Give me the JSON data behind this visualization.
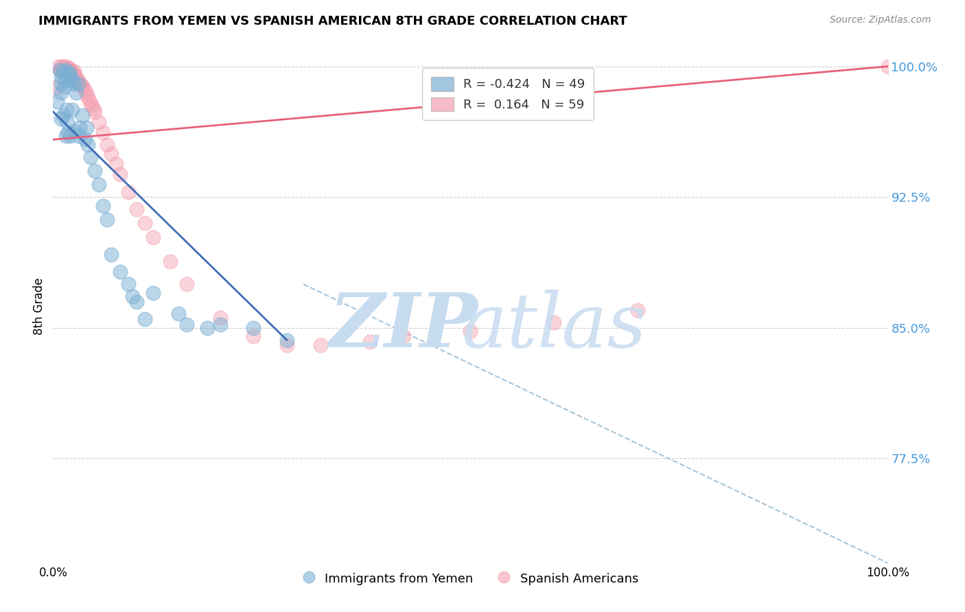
{
  "title": "IMMIGRANTS FROM YEMEN VS SPANISH AMERICAN 8TH GRADE CORRELATION CHART",
  "source": "Source: ZipAtlas.com",
  "ylabel": "8th Grade",
  "xlim": [
    0.0,
    1.0
  ],
  "ylim": [
    0.715,
    1.01
  ],
  "yticks": [
    0.775,
    0.85,
    0.925,
    1.0
  ],
  "ytick_labels": [
    "77.5%",
    "85.0%",
    "92.5%",
    "100.0%"
  ],
  "xticks": [
    0.0,
    0.2,
    0.4,
    0.6,
    0.8,
    1.0
  ],
  "xtick_labels": [
    "0.0%",
    "",
    "",
    "",
    "",
    "100.0%"
  ],
  "legend_blue_label": "Immigrants from Yemen",
  "legend_pink_label": "Spanish Americans",
  "R_blue": -0.424,
  "N_blue": 49,
  "R_pink": 0.164,
  "N_pink": 59,
  "blue_color": "#7BAFD4",
  "pink_color": "#F4A0B0",
  "blue_line_color": "#3D6CB5",
  "pink_line_color": "#E8607A",
  "dashed_line_color": "#A8C4D8",
  "background_color": "#FFFFFF",
  "watermark_zip": "ZIP",
  "watermark_atlas": "atlas",
  "watermark_color": "#C8DCF0",
  "blue_line_x0": 0.0,
  "blue_line_y0": 0.974,
  "blue_line_x1": 0.28,
  "blue_line_y1": 0.843,
  "pink_line_x0": 0.0,
  "pink_line_y0": 0.958,
  "pink_line_x1": 1.0,
  "pink_line_y1": 1.0,
  "dash_line_x0": 0.3,
  "dash_line_y0": 0.875,
  "dash_line_x1": 1.0,
  "dash_line_y1": 0.715,
  "blue_scatter_x": [
    0.005,
    0.008,
    0.01,
    0.01,
    0.01,
    0.01,
    0.012,
    0.012,
    0.013,
    0.015,
    0.015,
    0.015,
    0.016,
    0.017,
    0.018,
    0.018,
    0.02,
    0.02,
    0.02,
    0.022,
    0.023,
    0.025,
    0.025,
    0.028,
    0.03,
    0.03,
    0.032,
    0.035,
    0.038,
    0.04,
    0.042,
    0.045,
    0.05,
    0.055,
    0.06,
    0.065,
    0.07,
    0.08,
    0.09,
    0.095,
    0.1,
    0.11,
    0.12,
    0.15,
    0.16,
    0.185,
    0.2,
    0.24,
    0.28
  ],
  "blue_scatter_y": [
    0.98,
    0.998,
    0.994,
    0.99,
    0.985,
    0.97,
    0.997,
    0.972,
    0.988,
    0.998,
    0.993,
    0.96,
    0.975,
    0.968,
    0.996,
    0.962,
    0.996,
    0.992,
    0.96,
    0.993,
    0.975,
    0.99,
    0.963,
    0.985,
    0.99,
    0.96,
    0.965,
    0.972,
    0.958,
    0.965,
    0.955,
    0.948,
    0.94,
    0.932,
    0.92,
    0.912,
    0.892,
    0.882,
    0.875,
    0.868,
    0.865,
    0.855,
    0.87,
    0.858,
    0.852,
    0.85,
    0.852,
    0.85,
    0.843
  ],
  "pink_scatter_x": [
    0.004,
    0.006,
    0.008,
    0.01,
    0.01,
    0.011,
    0.012,
    0.013,
    0.014,
    0.015,
    0.015,
    0.016,
    0.018,
    0.018,
    0.019,
    0.02,
    0.02,
    0.021,
    0.022,
    0.023,
    0.024,
    0.025,
    0.026,
    0.027,
    0.028,
    0.03,
    0.032,
    0.033,
    0.034,
    0.036,
    0.038,
    0.04,
    0.042,
    0.044,
    0.046,
    0.048,
    0.05,
    0.055,
    0.06,
    0.065,
    0.07,
    0.075,
    0.08,
    0.09,
    0.1,
    0.11,
    0.12,
    0.14,
    0.16,
    0.2,
    0.24,
    0.28,
    0.32,
    0.38,
    0.42,
    0.5,
    0.6,
    0.7,
    1.0
  ],
  "pink_scatter_y": [
    0.988,
    1.0,
    0.998,
    1.0,
    0.998,
    0.997,
    1.0,
    0.999,
    0.998,
    1.0,
    0.999,
    0.998,
    0.998,
    0.997,
    0.999,
    0.998,
    0.996,
    0.998,
    0.997,
    0.996,
    0.995,
    0.997,
    0.995,
    0.994,
    0.993,
    0.992,
    0.99,
    0.99,
    0.989,
    0.988,
    0.986,
    0.984,
    0.982,
    0.98,
    0.978,
    0.976,
    0.974,
    0.968,
    0.962,
    0.955,
    0.95,
    0.944,
    0.938,
    0.928,
    0.918,
    0.91,
    0.902,
    0.888,
    0.875,
    0.856,
    0.845,
    0.84,
    0.84,
    0.842,
    0.845,
    0.848,
    0.853,
    0.86,
    1.0
  ]
}
